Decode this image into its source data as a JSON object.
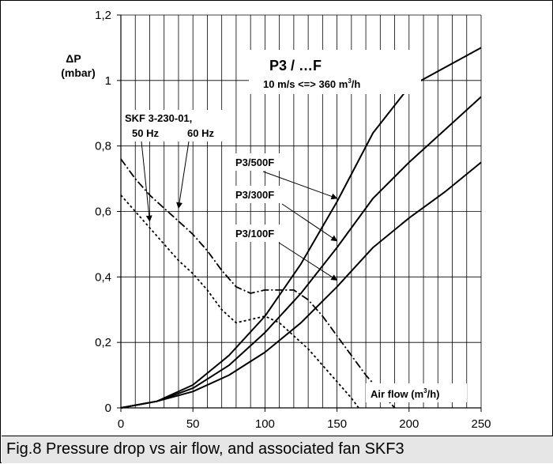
{
  "caption": "Fig.8 Pressure drop vs air flow, and associated fan SKF3",
  "chart_data": {
    "type": "line",
    "title": "P3 / …F",
    "subtitle": {
      "pre": "10 m/s <=> 360 m",
      "sup": "3",
      "post": "/h"
    },
    "ylabel": {
      "symbol": "ΔP",
      "unit": "(mbar)"
    },
    "xlabel": {
      "pre": "Air flow (m",
      "sup": "3",
      "post": "/h)"
    },
    "xlim": [
      0,
      250
    ],
    "ylim": [
      0,
      1.2
    ],
    "x_ticks": [
      {
        "v": 0,
        "label": "0"
      },
      {
        "v": 50,
        "label": "50"
      },
      {
        "v": 100,
        "label": "100"
      },
      {
        "v": 150,
        "label": "150"
      },
      {
        "v": 200,
        "label": "200"
      },
      {
        "v": 250,
        "label": "250"
      }
    ],
    "y_ticks": [
      {
        "v": 0,
        "label": "0"
      },
      {
        "v": 0.2,
        "label": "0,2"
      },
      {
        "v": 0.4,
        "label": "0,4"
      },
      {
        "v": 0.6,
        "label": "0,6"
      },
      {
        "v": 0.8,
        "label": "0,8"
      },
      {
        "v": 1.0,
        "label": "1"
      },
      {
        "v": 1.2,
        "label": "1,2"
      }
    ],
    "grid": {
      "vertical_step": 10,
      "horizontal_step": 0.2
    },
    "fan_label": "SKF 3-230-01,",
    "series": [
      {
        "name": "P3/500F",
        "style": "solid",
        "points": [
          [
            0,
            0
          ],
          [
            25,
            0.02
          ],
          [
            50,
            0.07
          ],
          [
            75,
            0.16
          ],
          [
            100,
            0.28
          ],
          [
            125,
            0.44
          ],
          [
            150,
            0.63
          ],
          [
            175,
            0.84
          ],
          [
            200,
            0.98
          ],
          [
            225,
            1.04
          ],
          [
            250,
            1.1
          ]
        ]
      },
      {
        "name": "P3/300F",
        "style": "solid",
        "points": [
          [
            0,
            0
          ],
          [
            25,
            0.02
          ],
          [
            50,
            0.06
          ],
          [
            75,
            0.13
          ],
          [
            100,
            0.23
          ],
          [
            125,
            0.35
          ],
          [
            150,
            0.49
          ],
          [
            175,
            0.64
          ],
          [
            200,
            0.75
          ],
          [
            225,
            0.85
          ],
          [
            250,
            0.95
          ]
        ]
      },
      {
        "name": "P3/100F",
        "style": "solid",
        "points": [
          [
            0,
            0
          ],
          [
            25,
            0.02
          ],
          [
            50,
            0.05
          ],
          [
            75,
            0.1
          ],
          [
            100,
            0.17
          ],
          [
            125,
            0.26
          ],
          [
            150,
            0.37
          ],
          [
            175,
            0.49
          ],
          [
            200,
            0.58
          ],
          [
            225,
            0.66
          ],
          [
            250,
            0.75
          ]
        ]
      },
      {
        "name": "60 Hz",
        "style": "dashdot",
        "points": [
          [
            0,
            0.76
          ],
          [
            10,
            0.7
          ],
          [
            20,
            0.65
          ],
          [
            30,
            0.61
          ],
          [
            40,
            0.57
          ],
          [
            50,
            0.53
          ],
          [
            60,
            0.48
          ],
          [
            70,
            0.42
          ],
          [
            80,
            0.37
          ],
          [
            90,
            0.35
          ],
          [
            100,
            0.36
          ],
          [
            110,
            0.36
          ],
          [
            120,
            0.36
          ],
          [
            130,
            0.33
          ],
          [
            140,
            0.28
          ],
          [
            150,
            0.22
          ],
          [
            160,
            0.16
          ],
          [
            170,
            0.1
          ],
          [
            180,
            0.05
          ],
          [
            190,
            0.0
          ]
        ]
      },
      {
        "name": "50 Hz",
        "style": "dotted",
        "points": [
          [
            0,
            0.65
          ],
          [
            10,
            0.6
          ],
          [
            20,
            0.55
          ],
          [
            30,
            0.5
          ],
          [
            40,
            0.45
          ],
          [
            50,
            0.41
          ],
          [
            60,
            0.36
          ],
          [
            70,
            0.3
          ],
          [
            80,
            0.26
          ],
          [
            90,
            0.27
          ],
          [
            100,
            0.28
          ],
          [
            110,
            0.26
          ],
          [
            120,
            0.22
          ],
          [
            130,
            0.18
          ],
          [
            140,
            0.13
          ],
          [
            150,
            0.08
          ],
          [
            160,
            0.03
          ],
          [
            165,
            0.0
          ]
        ]
      }
    ],
    "annotations": [
      {
        "label": "P3/500F",
        "target": [
          150,
          0.64
        ]
      },
      {
        "label": "P3/300F",
        "target": [
          150,
          0.51
        ]
      },
      {
        "label": "P3/100F",
        "target": [
          150,
          0.39
        ]
      },
      {
        "label": "50 Hz",
        "target": [
          20,
          0.57
        ]
      },
      {
        "label": "60 Hz",
        "target": [
          40,
          0.61
        ]
      }
    ]
  }
}
